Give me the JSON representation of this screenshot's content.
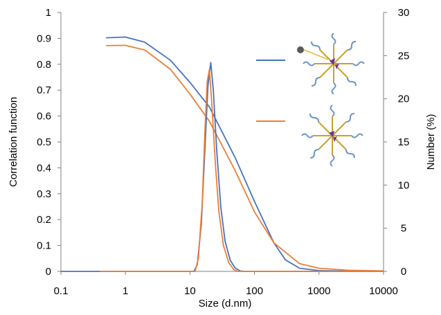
{
  "chart_data": {
    "type": "line",
    "xlabel": "Size (d.nm)",
    "ylabel_left": "Correlation function",
    "ylabel_right": "Number (%)",
    "x_scale": "log",
    "xlim": [
      0.1,
      10000
    ],
    "ylim_left": [
      0,
      1
    ],
    "ylim_right": [
      0,
      30
    ],
    "x_ticks": [
      "0.1",
      "1",
      "10",
      "100",
      "1000",
      "10000"
    ],
    "y_left_ticks": [
      "0",
      "0.1",
      "0.2",
      "0.3",
      "0.4",
      "0.5",
      "0.6",
      "0.7",
      "0.8",
      "0.9",
      "1"
    ],
    "y_right_ticks": [
      "0",
      "5",
      "10",
      "15",
      "20",
      "25",
      "30"
    ],
    "grid": false,
    "legend": "right, two colored line samples each followed by a micelle illustration",
    "series": [
      {
        "color": "#4472C4",
        "axis": "left",
        "kind": "correlation",
        "points": [
          [
            0.5,
            0.902
          ],
          [
            1,
            0.905
          ],
          [
            2,
            0.885
          ],
          [
            5,
            0.815
          ],
          [
            10,
            0.73
          ],
          [
            20,
            0.635
          ],
          [
            50,
            0.44
          ],
          [
            100,
            0.27
          ],
          [
            200,
            0.11
          ],
          [
            300,
            0.045
          ],
          [
            500,
            0.012
          ],
          [
            1000,
            0.003
          ],
          [
            3000,
            0.001
          ],
          [
            10000,
            0.0
          ]
        ]
      },
      {
        "color": "#ED7D31",
        "axis": "left",
        "kind": "correlation",
        "points": [
          [
            0.5,
            0.872
          ],
          [
            1,
            0.873
          ],
          [
            2,
            0.855
          ],
          [
            5,
            0.78
          ],
          [
            10,
            0.685
          ],
          [
            20,
            0.58
          ],
          [
            50,
            0.39
          ],
          [
            100,
            0.23
          ],
          [
            200,
            0.11
          ],
          [
            500,
            0.03
          ],
          [
            1000,
            0.012
          ],
          [
            3000,
            0.004
          ],
          [
            10000,
            0.002
          ]
        ]
      },
      {
        "color": "#4472C4",
        "axis": "right",
        "kind": "number",
        "points": [
          [
            0.1,
            0
          ],
          [
            11.5,
            0
          ],
          [
            13,
            0.8
          ],
          [
            15,
            5.5
          ],
          [
            17,
            14
          ],
          [
            19,
            21.5
          ],
          [
            21,
            24.2
          ],
          [
            23,
            21
          ],
          [
            26,
            14
          ],
          [
            30,
            7.5
          ],
          [
            35,
            3.5
          ],
          [
            42,
            1.3
          ],
          [
            50,
            0.4
          ],
          [
            60,
            0.05
          ],
          [
            70,
            0
          ],
          [
            10000,
            0
          ]
        ]
      },
      {
        "color": "#ED7D31",
        "axis": "right",
        "kind": "number",
        "points": [
          [
            0.4,
            0
          ],
          [
            12,
            0
          ],
          [
            13.5,
            1.5
          ],
          [
            15.5,
            8
          ],
          [
            17,
            16
          ],
          [
            18.5,
            22
          ],
          [
            20,
            23.4
          ],
          [
            22,
            19
          ],
          [
            25,
            12
          ],
          [
            28,
            7
          ],
          [
            33,
            3
          ],
          [
            40,
            1
          ],
          [
            48,
            0.2
          ],
          [
            55,
            0
          ],
          [
            10000,
            0
          ]
        ]
      }
    ]
  }
}
